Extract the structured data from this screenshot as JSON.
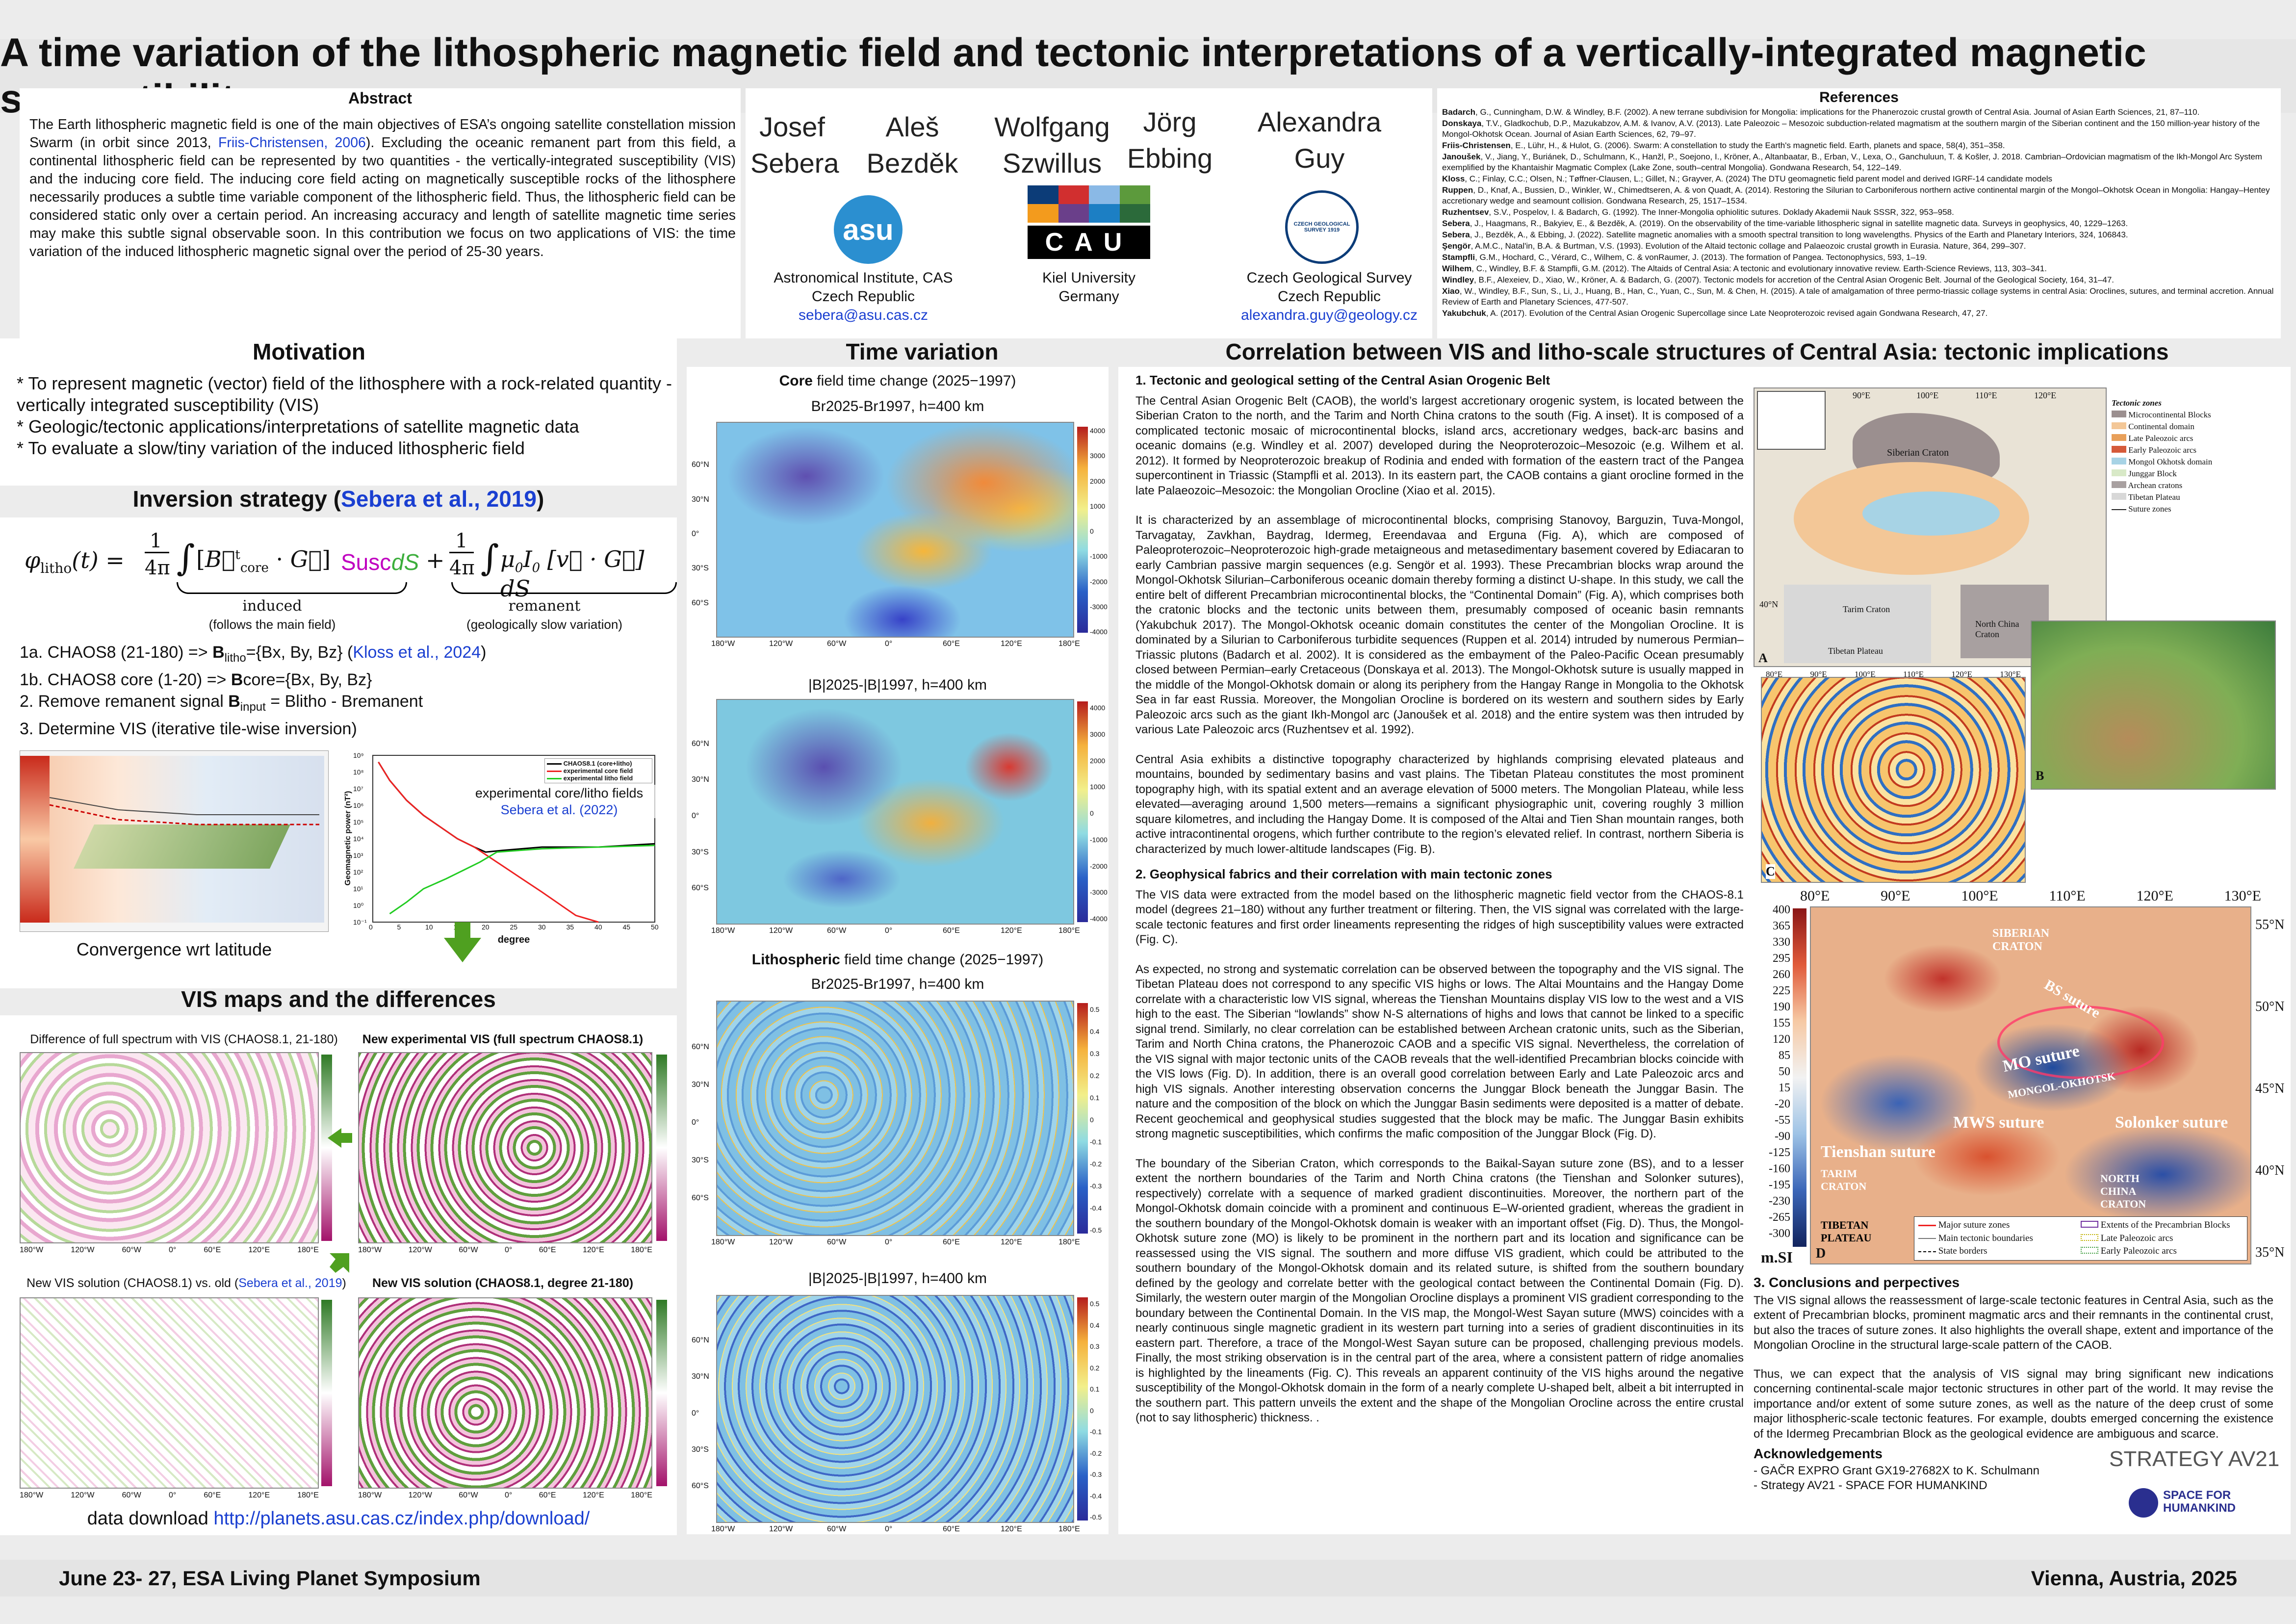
{
  "title": "A time variation of the lithospheric magnetic field and tectonic interpretations of a vertically-integrated magnetic susceptibility",
  "abstract": {
    "heading": "Abstract",
    "text_a": "The Earth lithospheric magnetic field is one of the main objectives of ESA’s ongoing satellite constellation mission Swarm (in orbit since 2013, ",
    "link": "Friis-Christensen, 2006",
    "text_b": "). Excluding the oceanic remanent part from this field, a continental lithospheric field can be represented by two quantities - the vertically-integrated susceptibility (VIS) and the inducing core field. The inducing core field acting on magnetically susceptible rocks of the lithosphere necessarily produces a subtle time variable component of the lithospheric field. Thus, the lithospheric field can be considered static only over a certain period. An increasing accuracy and length of satellite magnetic time series may make this subtle signal observable soon. In this contribution we focus on two applications of VIS: the time variation of the induced lithospheric magnetic signal over the period of 25-30 years."
  },
  "authors": [
    {
      "first": "Josef",
      "last": "Sebera"
    },
    {
      "first": "Aleš",
      "last": "Bezděk"
    },
    {
      "first": "Wolfgang",
      "last": "Szwillus"
    },
    {
      "first": "Jörg",
      "last": "Ebbing"
    },
    {
      "first": "Alexandra",
      "last": "Guy"
    }
  ],
  "institutions": [
    {
      "name": "Astronomical Institute, CAS",
      "country": "Czech Republic",
      "email": "sebera@asu.cas.cz",
      "logo": "asu"
    },
    {
      "name": "Kiel University",
      "country": "Germany",
      "logo": "CAU"
    },
    {
      "name": "Czech Geological Survey",
      "country": "Czech Republic",
      "email": "alexandra.guy@geology.cz",
      "logo": "CZECH GEOLOGICAL SURVEY 1919"
    }
  ],
  "references": {
    "heading": "References",
    "items": [
      "Badarch, G., Cunningham, D.W. & Windley, B.F. (2002). A new terrane subdivision for Mongolia: implications for the Phanerozoic crustal growth of Central Asia. Journal of Asian Earth Sciences, 21, 87–110.",
      "Donskaya, T.V., Gladkochub, D.P., Mazukabzov, A.M. & Ivanov, A.V. (2013). Late Paleozoic – Mesozoic subduction-related magmatism at the southern margin of the Siberian continent and the 150 million-year history of the Mongol-Okhotsk Ocean. Journal of Asian Earth Sciences, 62, 79–97.",
      "Friis-Christensen, E., Lühr, H., & Hulot, G. (2006). Swarm: A constellation to study the Earth's magnetic field. Earth, planets and space, 58(4), 351–358.",
      "Janoušek, V., Jiang, Y., Buriánek, D., Schulmann, K., Hanžl, P., Soejono, I., Kröner, A., Altanbaatar, B., Erban, V., Lexa, O., Ganchuluun, T. & Košler, J. 2018. Cambrian–Ordovician magmatism of the Ikh-Mongol Arc System exemplified by the Khantaishir Magmatic Complex (Lake Zone, south–central Mongolia). Gondwana Research, 54, 122–149.",
      "Kloss, C.; Finlay, C.C.; Olsen, N.; Tøffner-Clausen, L.; Gillet, N.; Grayver, A. (2024) The DTU geomagnetic field parent model and derived IGRF-14 candidate models",
      "Ruppen, D., Knaf, A., Bussien, D., Winkler, W., Chimedtseren, A. & von Quadt, A. (2014). Restoring the Silurian to Carboniferous northern active continental margin of the Mongol–Okhotsk Ocean in Mongolia: Hangay–Hentey accretionary wedge and seamount collision. Gondwana Research, 25, 1517–1534.",
      "Ruzhentsev, S.V., Pospelov, I. & Badarch, G. (1992). The Inner-Mongolia ophiolitic sutures. Doklady Akademii Nauk SSSR, 322, 953–958.",
      "Sebera, J., Haagmans, R., Bakyiev, E., & Bezděk, A. (2019). On the observability of the time-variable lithospheric signal in satellite magnetic data. Surveys in geophysics, 40, 1229–1263.",
      "Sebera, J., Bezděk, A., & Ebbing, J. (2022). Satellite magnetic anomalies with a smooth spectral transition to long wavelengths. Physics of the Earth and Planetary Interiors, 324, 106843.",
      "Şengör, A.M.C., Natal'in, B.A. & Burtman, V.S. (1993). Evolution of the Altaid tectonic collage and Palaeozoic crustal growth in Eurasia. Nature, 364, 299–307.",
      "Stampfli, G.M., Hochard, C., Vérard, C., Wilhem, C. & vonRaumer, J. (2013). The formation of Pangea. Tectonophysics, 593, 1–19.",
      "Wilhem, C., Windley, B.F. & Stampfli, G.M. (2012). The Altaids of Central Asia: A tectonic and evolutionary innovative review. Earth-Science Reviews, 113, 303–341.",
      "Windley, B.F., Alexeiev, D., Xiao, W., Kröner, A. & Badarch, G. (2007). Tectonic models for accretion of the Central Asian Orogenic Belt. Journal of the Geological Society, 164, 31–47.",
      "Xiao, W., Windley, B.F., Sun, S., Li, J., Huang, B., Han, C., Yuan, C., Sun, M. & Chen, H. (2015). A tale of amalgamation of three permo-triassic collage systems in central Asia: Oroclines, sutures, and terminal accretion. Annual Review of Earth and Planetary Sciences, 477-507.",
      "Yakubchuk, A. (2017). Evolution of the Central Asian Orogenic Supercollage since Late Neoproterozoic revised again Gondwana Research, 47, 27."
    ]
  },
  "motivation": {
    "heading": "Motivation",
    "items": [
      "* To represent magnetic (vector) field of the lithosphere with a rock-related quantity - vertically integrated susceptibility (VIS)",
      "* Geologic/tectonic applications/interpretations of satellite magnetic data",
      "* To evaluate a slow/tiny variation of the induced lithospheric field"
    ]
  },
  "inversion": {
    "heading": "Inversion strategy",
    "heading_link": "Sebera et al., 2019",
    "eq_induced": "induced",
    "eq_induced_note": "(follows the main field)",
    "eq_remanent": "remanent",
    "eq_remanent_note": "(geologically slow variation)",
    "steps": [
      {
        "pre": "1a. CHAOS8 (21-180) => ",
        "bold": "B",
        "sub": "litho",
        "post": "={Bx, By, Bz} ",
        "link": "Kloss et al., 2024"
      },
      {
        "pre": "1b. CHAOS8 core (1-20) => ",
        "bold": "B",
        "sub": "",
        "post": "core={Bx, By, Bz}"
      },
      {
        "pre": "2. Remove remanent signal ",
        "bold": "B",
        "sub": "input",
        "post": " = Blitho - Bremanent"
      },
      {
        "pre": "3. Determine VIS (iterative tile-wise inversion)",
        "bold": "",
        "sub": "",
        "post": ""
      }
    ],
    "convergence": "Convergence wrt latitude",
    "spectrum_label": "experimental core/litho fields",
    "spectrum_link": "Sebera et al. (2022)",
    "legend": [
      "CHAOS8.1 (core+litho)",
      "experimental core field",
      "experimental litho field"
    ],
    "xlabel": "degree",
    "ylabel": "Geomagnetic power (nT²)",
    "x_ticks": [
      "0",
      "5",
      "10",
      "15",
      "20",
      "25",
      "30",
      "35",
      "40",
      "45",
      "50"
    ],
    "y_ticks": [
      "10⁹",
      "10⁸",
      "10⁷",
      "10⁶",
      "10⁵",
      "10⁴",
      "10³",
      "10²",
      "10¹",
      "10⁰",
      "10⁻¹"
    ]
  },
  "vis": {
    "heading": "VIS maps and the differences",
    "map1": "Difference of full spectrum with VIS (CHAOS8.1, 21-180)",
    "map2": "New experimental VIS (full spectrum CHAOS8.1)",
    "map3": "New VIS solution (CHAOS8.1) vs. old (",
    "map3_link": "Sebera et al., 2019",
    "map3_end": ")",
    "map4": "New VIS solution (CHAOS8.1, degree 21-180)",
    "lon_ticks": [
      "180°W",
      "120°W",
      "60°W",
      "0°",
      "60°E",
      "120°E",
      "180°E"
    ],
    "download_pre": "data download ",
    "download_link": "http://planets.asu.cas.cz/index.php/download/"
  },
  "time": {
    "heading": "Time variation",
    "core_pre": "Core",
    "core_post": " field time change (2025−1997)",
    "br_core": "Br2025-Br1997, h=400 km",
    "b_core": "|B|2025-|B|1997, h=400 km",
    "litho_pre": "Lithospheric",
    "litho_post": " field time change (2025−1997)",
    "br_litho": "Br2025-Br1997, h=400 km",
    "b_litho": "|B|2025-|B|1997, h=400 km",
    "cbar_core": [
      "4000",
      "3000",
      "2000",
      "1000",
      "0",
      "-1000",
      "-2000",
      "-3000",
      "-4000"
    ],
    "cbar_litho": [
      "0.5",
      "0.4",
      "0.3",
      "0.2",
      "0.1",
      "0",
      "-0.1",
      "-0.2",
      "-0.3",
      "-0.4",
      "-0.5"
    ],
    "lon_ticks": [
      "180°W",
      "120°W",
      "60°W",
      "0°",
      "60°E",
      "120°E",
      "180°E"
    ],
    "lat_ticks": [
      "60°N",
      "30°N",
      "0°",
      "30°S",
      "60°S"
    ]
  },
  "corr": {
    "heading": "Correlation between VIS and litho-scale structures of Central Asia: tectonic implications",
    "s1": "1. Tectonic and geological setting of the Central Asian Orogenic Belt",
    "p1": "The Central Asian Orogenic Belt (CAOB), the world’s largest accretionary orogenic system, is located between the Siberian Craton to the north, and the Tarim and North China cratons to the south (Fig. A inset). It is composed of a complicated tectonic mosaic of microcontinental blocks, island arcs, accretionary wedges, back-arc basins and oceanic domains (e.g. Windley et al. 2007) developed during the Neoproterozoic–Mesozoic (e.g. Wilhem et al. 2012). It formed by Neoproterozoic breakup of Rodinia and ended with formation of the eastern tract of the Pangea supercontinent in Triassic (Stampfli et al. 2013). In its eastern part, the CAOB contains a giant orocline formed in the late Palaeozoic–Mesozoic: the Mongolian Orocline (Xiao et al. 2015).",
    "p2": "It is characterized by an assemblage of microcontinental blocks, comprising Stanovoy, Barguzin, Tuva-Mongol, Tarvagatay, Zavkhan, Baydrag, Idermeg, Ereendavaa and Erguna (Fig. A), which are composed of Paleoproterozoic–Neoproterozoic high-grade metaigneous and metasedimentary basement covered by Ediacaran to early Cambrian passive margin sequences (e.g. Sengör et al. 1993). These Precambrian blocks wrap around the Mongol-Okhotsk Silurian–Carboniferous oceanic domain thereby forming a distinct U-shape. In this study, we call the entire belt of different Precambrian microcontinental blocks, the “Continental Domain” (Fig. A), which comprises both the cratonic blocks and the tectonic units between them, presumably composed of oceanic basin remnants (Yakubchuk 2017). The Mongol-Okhotsk oceanic domain constitutes the center of the Mongolian Orocline. It is dominated by a Silurian to Carboniferous turbidite sequences (Ruppen et al. 2014) intruded by numerous Permian–Triassic plutons (Badarch et al. 2002). It is considered as the embayment of the Paleo-Pacific Ocean presumably closed between Permian–early Cretaceous (Donskaya et al. 2013). The Mongol-Okhotsk suture is usually mapped in the middle of the Mongol-Okhotsk domain or along its periphery from the Hangay Range in Mongolia to the Okhotsk Sea in far east Russia. Moreover, the Mongolian Orocline is bordered on its western and southern sides by Early Paleozoic arcs such as the giant Ikh-Mongol arc (Janoušek et al. 2018) and the entire system was then intruded by various Late Paleozoic arcs (Ruzhentsev et al. 1992).",
    "p3": "Central Asia exhibits a distinctive topography characterized by highlands comprising elevated plateaus and mountains, bounded by sedimentary basins and vast plains. The Tibetan Plateau constitutes the most prominent topography high, with its spatial extent and an average elevation of 5000 meters. The Mongolian Plateau, while less elevated—averaging around 1,500 meters—remains a significant physiographic unit, covering roughly 3 million square kilometres, and including the Hangay Dome. It is composed of the Altai and Tien Shan mountain ranges, both active intracontinental orogens, which further contribute to the region’s elevated relief. In contrast, northern Siberia is characterized by much lower-altitude landscapes (Fig. B).",
    "s2": "2. Geophysical fabrics and their correlation with main tectonic zones",
    "p4": "The VIS data were extracted from the model based on the lithospheric magnetic field vector from the CHAOS-8.1 model (degrees 21–180) without any further treatment or filtering. Then, the VIS signal was correlated with the large-scale tectonic features and first order lineaments representing the ridges of high susceptibility values were extracted (Fig. C).",
    "p5": "As expected, no strong and systematic correlation can be observed between the topography and the VIS signal. The Tibetan Plateau does not correspond to any specific VIS highs or lows. The Altai Mountains and the Hangay Dome correlate with a characteristic low VIS signal, whereas the Tienshan Mountains display VIS low to the west and a VIS high to the east. The Siberian “lowlands” show N-S alternations of highs and lows that cannot be linked to a specific signal trend. Similarly, no clear correlation can be established between Archean cratonic units, such as the Siberian, Tarim and North China cratons, the Phanerozoic CAOB and a specific VIS signal. Nevertheless, the correlation of the VIS signal with major tectonic units of the CAOB reveals that the well-identified Precambrian blocks coincide with the VIS lows (Fig. D). In addition, there is an overall good correlation between Early and Late Paleozoic arcs and high VIS signals. Another interesting observation concerns the Junggar Block beneath the Junggar Basin. The nature and the composition of the block on which the Junggar Basin sediments were deposited is a matter of debate. Recent geochemical and geophysical studies suggested that the block may be mafic. The Junggar Basin exhibits strong magnetic susceptibilities, which confirms the mafic composition of the Junggar Block (Fig. D).",
    "p6": "The boundary of the Siberian Craton, which corresponds to the Baikal-Sayan suture zone (BS), and to a lesser extent the northern boundaries of the Tarim and North China cratons (the Tienshan and Solonker sutures), respectively) correlate with a sequence of marked gradient discontinuities. Moreover, the northern part of the Mongol-Okhotsk domain coincide with a prominent and continuous E–W-oriented gradient, whereas the gradient in the southern boundary of the Mongol-Okhotsk domain is weaker with an important offset (Fig. D). Thus, the Mongol-Okhotsk suture zone (MO) is likely to be prominent in the northern part and its location and significance can be reassessed using the VIS signal. The southern and more diffuse VIS gradient, which could be attributed to the southern boundary of the Mongol-Okhotsk domain and its related suture, is shifted from the southern boundary defined by the geology and correlate better with the geological contact between the Continental Domain (Fig. D). Similarly, the western outer margin of the Mongolian Orocline displays a prominent VIS gradient corresponding to the boundary between the Continental Domain. In the VIS map, the Mongol-West Sayan suture (MWS) coincides with a nearly continuous single magnetic gradient in its western part turning into a series of gradient discontinuities in its eastern part. Therefore, a trace of the Mongol-West Sayan suture can be proposed, challenging previous models. Finally, the most striking observation is in the central part of the area, where a consistent pattern of ridge anomalies is highlighted by the lineaments (Fig. C). This reveals an apparent continuity of the VIS highs around the negative susceptibility of the Mongol-Okhotsk domain in the form of a nearly complete U-shaped belt, albeit a bit interrupted in the southern part. This pattern unveils the extent and the shape of the Mongolian Orocline across the entire crustal (not to say lithospheric) thickness. .",
    "s3": "3. Conclusions and perpectives",
    "p7": "The VIS signal allows the reassessment of large-scale tectonic features in Central Asia, such as the extent of Precambrian blocks, prominent magmatic arcs and their remnants in the continental crust, but also the traces of suture zones. It also highlights the overall shape, extent and importance of the Mongolian Orocline in the structural large-scale pattern of the CAOB.",
    "p8": "Thus, we can expect that the analysis of VIS signal may bring significant new indications concerning continental-scale major tectonic structures in other part of the world. It may revise the importance and/or extent of some suture zones, as well as the nature of the deep crust of some major lithospheric-scale tectonic features. For example, doubts emerged concerning the existence of the Idermeg Precambrian Block as the geological evidence are ambiguous and scarce.",
    "ack_heading": "Acknowledgements",
    "ack": [
      "- GAČR EXPRO Grant GX19-27682X to K. Schulmann",
      "- Strategy AV21 - SPACE FOR HUMANKIND"
    ],
    "strategy_logo": "STRATEGY AV21",
    "space_logo": "SPACE FOR HUMANKIND",
    "figA_legend_title": "Tectonic zones",
    "figA_legend": [
      "Microcontinental Blocks",
      "Continental domain",
      "Late Paleozoic arcs",
      "Early Paleozoic arcs",
      "Mongol Okhotsk domain",
      "Junggar Block",
      "Archean cratons",
      "Tibetan Plateau",
      "Suture zones"
    ],
    "figA_labels": [
      "Siberian Craton",
      "Tarim Craton",
      "North China Craton",
      "Tibetan Plateau",
      "A"
    ],
    "figA_lon": [
      "90°E",
      "100°E",
      "110°E",
      "120°E"
    ],
    "figA_lat": [
      "40°N"
    ],
    "figB_label": "B",
    "figC_label": "C",
    "figC_lon": [
      "80°E",
      "90°E",
      "100°E",
      "110°E",
      "120°E",
      "130°E"
    ],
    "figD_label": "D",
    "figD_lon": [
      "80°E",
      "90°E",
      "100°E",
      "110°E",
      "120°E",
      "130°E"
    ],
    "figD_lat": [
      "55°N",
      "50°N",
      "45°N",
      "40°N",
      "35°N"
    ],
    "figD_names": [
      "Siberian Craton",
      "BS suture",
      "MO suture",
      "Mongol-Okhotsk",
      "MWS suture",
      "Solonker suture",
      "Tienshan suture",
      "Tarim Craton",
      "North China Craton",
      "Tibetan Plateau"
    ],
    "figD_cbar": [
      "400",
      "365",
      "330",
      "295",
      "260",
      "225",
      "190",
      "155",
      "120",
      "85",
      "50",
      "15",
      "-20",
      "-55",
      "-90",
      "-125",
      "-160",
      "-195",
      "-230",
      "-265",
      "-300"
    ],
    "figD_unit": "m.SI",
    "figD_legend": [
      "Major suture zones",
      "Main tectonic boundaries",
      "State borders",
      "Extents of the Precambrian Blocks",
      "Late Paleozoic arcs",
      "Early Paleozoic arcs"
    ]
  },
  "footer": {
    "left": "June 23- 27, ESA Living Planet Symposium",
    "right": "Vienna, Austria, 2025"
  },
  "colors": {
    "accent": "#1a3fd1",
    "green_arrow": "#4fa020",
    "susc": "#c000c0",
    "ds": "#3cae3c"
  }
}
